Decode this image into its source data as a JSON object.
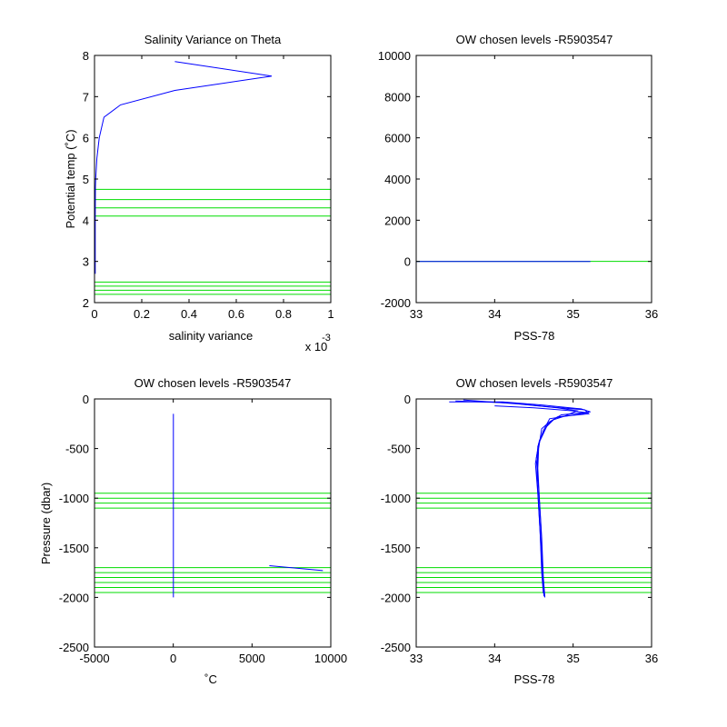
{
  "figure": {
    "background": "#ffffff",
    "line_color": "#0000ff",
    "level_color": "#00dd00"
  },
  "chart_data": [
    {
      "type": "line",
      "title": "Salinity Variance on Theta",
      "xlabel": "salinity variance",
      "ylabel": "Potential temp (˚C)",
      "x_exponent": "x 10",
      "x_exponent_power": "-3",
      "xlim": [
        0,
        1
      ],
      "ylim": [
        2,
        8
      ],
      "xticks": [
        0,
        0.2,
        0.4,
        0.6,
        0.8,
        1
      ],
      "xtick_labels": [
        "0",
        "0.2",
        "0.4",
        "0.6",
        "0.8",
        "1"
      ],
      "yticks": [
        2,
        3,
        4,
        5,
        6,
        7,
        8
      ],
      "ytick_labels": [
        "2",
        "3",
        "4",
        "5",
        "6",
        "7",
        "8"
      ],
      "grid": false,
      "series": [
        {
          "values_x": [
            0.34,
            0.75,
            0.34,
            0.11,
            0.04,
            0.02,
            0.01,
            0.005,
            0.004,
            0.003,
            0.003,
            0.003,
            0.003
          ],
          "values_y": [
            7.85,
            7.5,
            7.15,
            6.8,
            6.5,
            6.0,
            5.5,
            5.0,
            4.8,
            4.0,
            3.5,
            3.0,
            2.7
          ]
        }
      ],
      "horizontal_levels": [
        4.1,
        4.3,
        4.5,
        4.75,
        2.2,
        2.3,
        2.4,
        2.5
      ]
    },
    {
      "type": "line",
      "title": "OW chosen levels -R5903547",
      "xlabel": "PSS-78",
      "ylabel": "",
      "xlim": [
        33,
        36
      ],
      "ylim": [
        -2000,
        10000
      ],
      "xticks": [
        33,
        34,
        35,
        36
      ],
      "xtick_labels": [
        "33",
        "34",
        "35",
        "36"
      ],
      "yticks": [
        -2000,
        0,
        2000,
        4000,
        6000,
        8000,
        10000
      ],
      "ytick_labels": [
        "-2000",
        "0",
        "2000",
        "4000",
        "6000",
        "8000",
        "10000"
      ],
      "grid": false,
      "series": [
        {
          "values_x": [
            33,
            35.22
          ],
          "values_y": [
            0,
            0
          ]
        }
      ],
      "horizontal_levels": [
        0
      ]
    },
    {
      "type": "line",
      "title": "OW chosen levels -R5903547",
      "xlabel": "˚C",
      "ylabel": "Pressure (dbar)",
      "xlim": [
        -5000,
        10000
      ],
      "ylim": [
        -2500,
        0
      ],
      "xticks": [
        -5000,
        0,
        5000,
        10000
      ],
      "xtick_labels": [
        "-5000",
        "0",
        "5000",
        "10000"
      ],
      "yticks": [
        -2500,
        -2000,
        -1500,
        -1000,
        -500,
        0
      ],
      "ytick_labels": [
        "-2500",
        "-2000",
        "-1500",
        "-1000",
        "-500",
        "0"
      ],
      "grid": false,
      "series": [
        {
          "values_x": [
            5,
            5
          ],
          "values_y": [
            -150,
            -2000
          ]
        },
        {
          "values_x": [
            6100,
            9500
          ],
          "values_y": [
            -1680,
            -1730
          ]
        }
      ],
      "horizontal_levels": [
        -950,
        -1000,
        -1050,
        -1100,
        -1700,
        -1750,
        -1800,
        -1850,
        -1900,
        -1950
      ]
    },
    {
      "type": "line",
      "title": "OW chosen levels -R5903547",
      "xlabel": "PSS-78",
      "ylabel": "",
      "xlim": [
        33,
        36
      ],
      "ylim": [
        -2500,
        0
      ],
      "xticks": [
        33,
        34,
        35,
        36
      ],
      "xtick_labels": [
        "33",
        "34",
        "35",
        "36"
      ],
      "yticks": [
        -2500,
        -2000,
        -1500,
        -1000,
        -500,
        0
      ],
      "ytick_labels": [
        "-2500",
        "-2000",
        "-1500",
        "-1000",
        "-500",
        "0"
      ],
      "grid": false,
      "series": [
        {
          "values_x": [
            33.42,
            34.1,
            34.6,
            35.1,
            35.22,
            34.85,
            34.7,
            34.6,
            34.58,
            34.56,
            34.55,
            34.57,
            34.6,
            34.62,
            34.64
          ],
          "values_y": [
            -30,
            -30,
            -60,
            -100,
            -130,
            -160,
            -230,
            -300,
            -400,
            -500,
            -700,
            -1000,
            -1400,
            -1800,
            -2000
          ]
        },
        {
          "values_x": [
            33.5,
            34.2,
            34.7,
            35.15,
            35.2,
            34.8,
            34.68,
            34.62,
            34.56,
            34.53,
            34.56,
            34.59,
            34.61,
            34.63
          ],
          "values_y": [
            -20,
            -40,
            -80,
            -110,
            -150,
            -180,
            -250,
            -350,
            -450,
            -600,
            -900,
            -1300,
            -1700,
            -1980
          ]
        },
        {
          "values_x": [
            33.6,
            34.3,
            34.8,
            35.05,
            34.9,
            34.75,
            34.66,
            34.57,
            34.52,
            34.55,
            34.58,
            34.6,
            34.62
          ],
          "values_y": [
            -10,
            -50,
            -90,
            -120,
            -170,
            -210,
            -280,
            -420,
            -650,
            -950,
            -1350,
            -1750,
            -1960
          ]
        },
        {
          "values_x": [
            34.0,
            34.5,
            35.0,
            35.18,
            34.7,
            34.62,
            34.55,
            34.54,
            34.57,
            34.6,
            34.63
          ],
          "values_y": [
            -70,
            -90,
            -120,
            -140,
            -200,
            -320,
            -480,
            -800,
            -1200,
            -1650,
            -1990
          ]
        }
      ],
      "horizontal_levels": [
        -950,
        -1000,
        -1050,
        -1100,
        -1700,
        -1750,
        -1800,
        -1850,
        -1900,
        -1950
      ]
    }
  ]
}
